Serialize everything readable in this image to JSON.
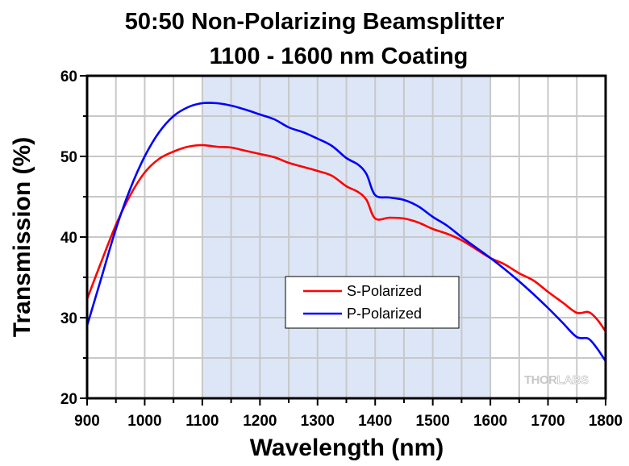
{
  "chart_data": {
    "type": "line",
    "title": [
      "50:50 Non-Polarizing Beamsplitter",
      "1100 - 1600 nm Coating"
    ],
    "xlabel": "Wavelength (nm)",
    "ylabel": "Transmission (%)",
    "xlim": [
      900,
      1800
    ],
    "ylim": [
      20,
      60
    ],
    "xticks": [
      900,
      1000,
      1100,
      1200,
      1300,
      1400,
      1500,
      1600,
      1700,
      1800
    ],
    "xminor_step": 50,
    "yticks": [
      20,
      30,
      40,
      50,
      60
    ],
    "yminor_step": 5,
    "grid": true,
    "highlight_band": {
      "from": 1100,
      "to": 1600,
      "color": "#dce6f7"
    },
    "legend": {
      "placement": "center-bottom",
      "entries": [
        "S-Polarized",
        "P-Polarized"
      ]
    },
    "watermark": {
      "part1": "THOR",
      "part2": "LABS"
    },
    "x": [
      900,
      925,
      950,
      975,
      1000,
      1025,
      1050,
      1075,
      1100,
      1125,
      1150,
      1175,
      1200,
      1225,
      1250,
      1275,
      1300,
      1325,
      1350,
      1370,
      1385,
      1400,
      1425,
      1450,
      1475,
      1500,
      1525,
      1550,
      1575,
      1600,
      1625,
      1650,
      1675,
      1700,
      1725,
      1750,
      1770,
      1785,
      1800
    ],
    "series": [
      {
        "name": "S-Polarized",
        "color": "#ff0000",
        "values": [
          32.3,
          37.0,
          41.5,
          45.2,
          48.0,
          49.7,
          50.6,
          51.2,
          51.4,
          51.2,
          51.1,
          50.7,
          50.3,
          49.9,
          49.2,
          48.7,
          48.2,
          47.6,
          46.3,
          45.6,
          44.6,
          42.3,
          42.4,
          42.3,
          41.8,
          41.0,
          40.4,
          39.6,
          38.5,
          37.4,
          36.6,
          35.5,
          34.6,
          33.2,
          31.9,
          30.6,
          30.7,
          29.8,
          28.3
        ]
      },
      {
        "name": "P-Polarized",
        "color": "#0000ff",
        "values": [
          29.0,
          35.0,
          41.0,
          46.0,
          50.0,
          53.0,
          55.0,
          56.1,
          56.6,
          56.6,
          56.3,
          55.8,
          55.2,
          54.6,
          53.6,
          53.0,
          52.2,
          51.3,
          49.8,
          49.0,
          47.8,
          45.2,
          44.9,
          44.6,
          43.8,
          42.5,
          41.4,
          40.0,
          38.7,
          37.4,
          36.0,
          34.5,
          32.9,
          31.2,
          29.4,
          27.6,
          27.4,
          26.2,
          24.6
        ]
      }
    ]
  }
}
